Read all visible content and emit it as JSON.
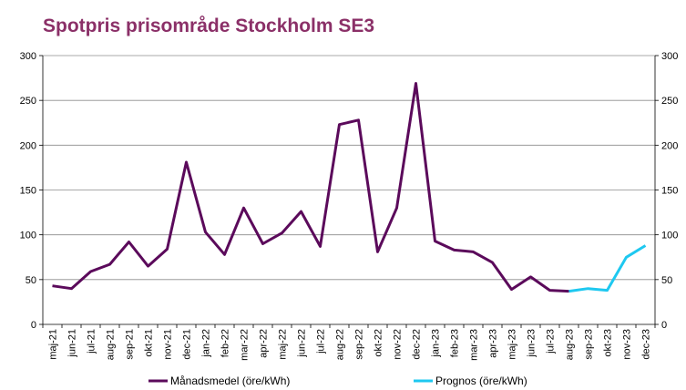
{
  "chart_data": {
    "type": "line",
    "title": "Spotpris prisområde Stockholm SE3",
    "ylim": [
      0,
      300
    ],
    "yticks": [
      0,
      50,
      100,
      150,
      200,
      250,
      300
    ],
    "secondary_ylim": [
      0,
      300
    ],
    "grid": true,
    "legend_position": "bottom",
    "categories": [
      "maj-21",
      "jun-21",
      "jul-21",
      "aug-21",
      "sep-21",
      "okt-21",
      "nov-21",
      "dec-21",
      "jan-22",
      "feb-22",
      "mar-22",
      "apr-22",
      "maj-22",
      "jun-22",
      "jul-22",
      "aug-22",
      "sep-22",
      "okt-22",
      "nov-22",
      "dec-22",
      "jan-23",
      "feb-23",
      "mar-23",
      "apr-23",
      "maj-23",
      "jun-23",
      "jul-23",
      "aug-23",
      "sep-23",
      "okt-23",
      "nov-23",
      "dec-23"
    ],
    "series": [
      {
        "name": "Månadsmedel (öre/kWh)",
        "color": "#5b0a5b",
        "values": [
          43,
          40,
          59,
          67,
          92,
          65,
          84,
          181,
          103,
          78,
          130,
          90,
          102,
          126,
          87,
          223,
          228,
          81,
          130,
          269,
          93,
          83,
          81,
          69,
          39,
          53,
          38,
          37,
          null,
          null,
          null,
          null
        ]
      },
      {
        "name": "Prognos (öre/kWh)",
        "color": "#1ec8f0",
        "values": [
          null,
          null,
          null,
          null,
          null,
          null,
          null,
          null,
          null,
          null,
          null,
          null,
          null,
          null,
          null,
          null,
          null,
          null,
          null,
          null,
          null,
          null,
          null,
          null,
          null,
          null,
          null,
          37,
          40,
          38,
          75,
          88
        ]
      }
    ]
  }
}
